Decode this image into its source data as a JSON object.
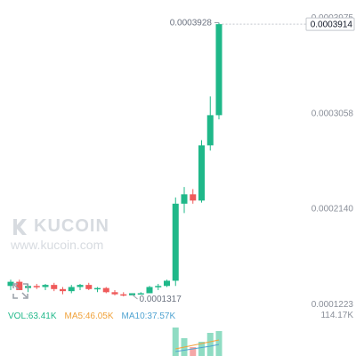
{
  "price_axis": {
    "ticks": [
      "0.0003975",
      "0.0003058",
      "0.0002140",
      "0.0001223"
    ],
    "last_price": "0.0003914"
  },
  "annotations": {
    "high": "0.0003928",
    "low": "0.0001317"
  },
  "watermark": {
    "brand": "KUCOIN",
    "url": "www.kucoin.com"
  },
  "legend": {
    "vol": "VOL:63.41K",
    "ma5": "MA5:46.05K",
    "ma10": "MA10:37.57K"
  },
  "volume_axis": {
    "max": "114.17K"
  },
  "colors": {
    "up": "#1fb889",
    "down": "#ef5a5a",
    "ma5": "#f0a23b",
    "ma10": "#4fa3d1",
    "vol_label": "#1fb889"
  },
  "icons": {
    "expand": "expand-icon"
  },
  "chart_data": {
    "type": "candlestick",
    "price_ticks": [
      0.0003975,
      0.0003058,
      0.000214,
      0.0001223
    ],
    "candles": [
      {
        "o": 0.00014,
        "h": 0.000146,
        "l": 0.000136,
        "c": 0.000144
      },
      {
        "o": 0.000144,
        "h": 0.000146,
        "l": 0.000138,
        "c": 0.000136
      },
      {
        "o": 0.000138,
        "h": 0.000142,
        "l": 0.000134,
        "c": 0.00014
      },
      {
        "o": 0.00014,
        "h": 0.000142,
        "l": 0.000137,
        "c": 0.000139
      },
      {
        "o": 0.000139,
        "h": 0.000142,
        "l": 0.000136,
        "c": 0.000141
      },
      {
        "o": 0.000141,
        "h": 0.000143,
        "l": 0.000135,
        "c": 0.000137
      },
      {
        "o": 0.000137,
        "h": 0.000139,
        "l": 0.000132,
        "c": 0.000135
      },
      {
        "o": 0.000135,
        "h": 0.000141,
        "l": 0.000133,
        "c": 0.000139
      },
      {
        "o": 0.000139,
        "h": 0.000142,
        "l": 0.000136,
        "c": 0.000141
      },
      {
        "o": 0.000141,
        "h": 0.000143,
        "l": 0.000136,
        "c": 0.000137
      },
      {
        "o": 0.000137,
        "h": 0.000139,
        "l": 0.000134,
        "c": 0.000138
      },
      {
        "o": 0.000138,
        "h": 0.000139,
        "l": 0.000133,
        "c": 0.000134
      },
      {
        "o": 0.000134,
        "h": 0.000136,
        "l": 0.000131,
        "c": 0.000132
      },
      {
        "o": 0.000132,
        "h": 0.000134,
        "l": 0.00013,
        "c": 0.000131
      },
      {
        "o": 0.000131,
        "h": 0.000133,
        "l": 0.0001317,
        "c": 0.000133
      },
      {
        "o": 0.000133,
        "h": 0.000134,
        "l": 0.000132,
        "c": 0.000133
      },
      {
        "o": 0.000133,
        "h": 0.00014,
        "l": 0.000133,
        "c": 0.000139
      },
      {
        "o": 0.000139,
        "h": 0.000142,
        "l": 0.000136,
        "c": 0.00014
      },
      {
        "o": 0.00014,
        "h": 0.000146,
        "l": 0.000139,
        "c": 0.000145
      },
      {
        "o": 0.000145,
        "h": 0.000225,
        "l": 0.00014,
        "c": 0.000219
      },
      {
        "o": 0.000219,
        "h": 0.000235,
        "l": 0.00021,
        "c": 0.000228
      },
      {
        "o": 0.000228,
        "h": 0.000233,
        "l": 0.000219,
        "c": 0.000222
      },
      {
        "o": 0.000222,
        "h": 0.00028,
        "l": 0.00022,
        "c": 0.000275
      },
      {
        "o": 0.000275,
        "h": 0.000322,
        "l": 0.00027,
        "c": 0.000304
      },
      {
        "o": 0.000304,
        "h": 0.0003928,
        "l": 0.0003,
        "c": 0.0003914
      }
    ],
    "volume_max": "114.17K",
    "vol_series": [
      {
        "v": 0.02,
        "up": true
      },
      {
        "v": 0.02,
        "up": false
      },
      {
        "v": 0.02,
        "up": true
      },
      {
        "v": 0.02,
        "up": true
      },
      {
        "v": 0.02,
        "up": true
      },
      {
        "v": 0.02,
        "up": false
      },
      {
        "v": 0.02,
        "up": false
      },
      {
        "v": 0.02,
        "up": true
      },
      {
        "v": 0.02,
        "up": true
      },
      {
        "v": 0.02,
        "up": false
      },
      {
        "v": 0.02,
        "up": true
      },
      {
        "v": 0.02,
        "up": false
      },
      {
        "v": 0.02,
        "up": false
      },
      {
        "v": 0.02,
        "up": false
      },
      {
        "v": 0.02,
        "up": true
      },
      {
        "v": 0.02,
        "up": true
      },
      {
        "v": 0.02,
        "up": true
      },
      {
        "v": 0.02,
        "up": true
      },
      {
        "v": 0.02,
        "up": true
      },
      {
        "v": 0.85,
        "up": true
      },
      {
        "v": 0.55,
        "up": true
      },
      {
        "v": 0.3,
        "up": false
      },
      {
        "v": 0.45,
        "up": true
      },
      {
        "v": 0.7,
        "up": true
      },
      {
        "v": 0.75,
        "up": true
      }
    ]
  }
}
